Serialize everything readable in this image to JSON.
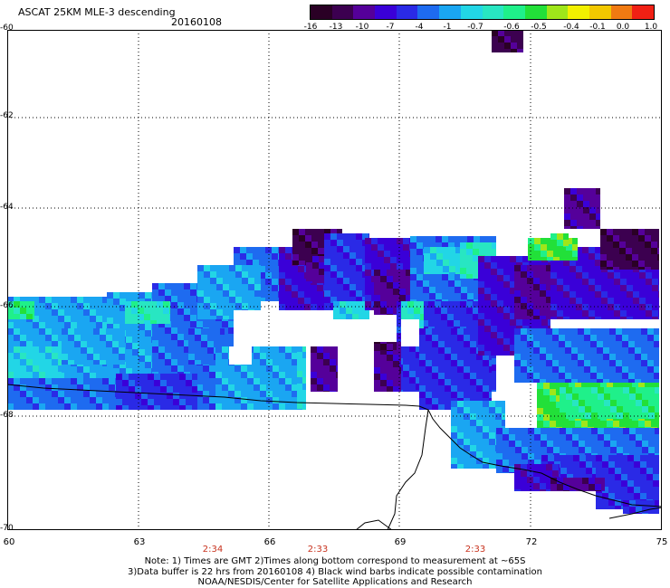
{
  "header": {
    "title": "ASCAT 25KM MLE-3 descending",
    "date": "20160108"
  },
  "colorbar": {
    "colors": [
      "#2a0025",
      "#3c0050",
      "#55009a",
      "#3a00d8",
      "#2a2ae6",
      "#1e6bf0",
      "#1aa6f2",
      "#22d6e6",
      "#28e6c2",
      "#1ff08a",
      "#22e039",
      "#9fe61a",
      "#f2f000",
      "#f2c800",
      "#f07a12",
      "#f02014"
    ],
    "ticks": [
      "-16",
      "-13",
      "-10",
      "-7",
      "-4",
      "-1",
      "-0.7",
      "-0.6",
      "-0.5",
      "-0.4",
      "-0.1",
      "0.0",
      "1.0"
    ]
  },
  "map": {
    "lat_labels": [
      "-60",
      "-62",
      "-64",
      "-66",
      "-68",
      "-70"
    ],
    "lon_labels": [
      "60",
      "63",
      "66",
      "69",
      "72",
      "75"
    ],
    "time_labels": [
      "2:34",
      "2:33",
      "2:33"
    ]
  },
  "notes": {
    "line1": "Note: 1) Times are GMT 2)Times along bottom correspond to measurement at ~65S",
    "line2": "3)Data buffer is 22 hrs from 20160108 4) Black wind barbs indicate possible contamination",
    "line3": "NOAA/NESDIS/Center for Satellite Applications and Research"
  }
}
